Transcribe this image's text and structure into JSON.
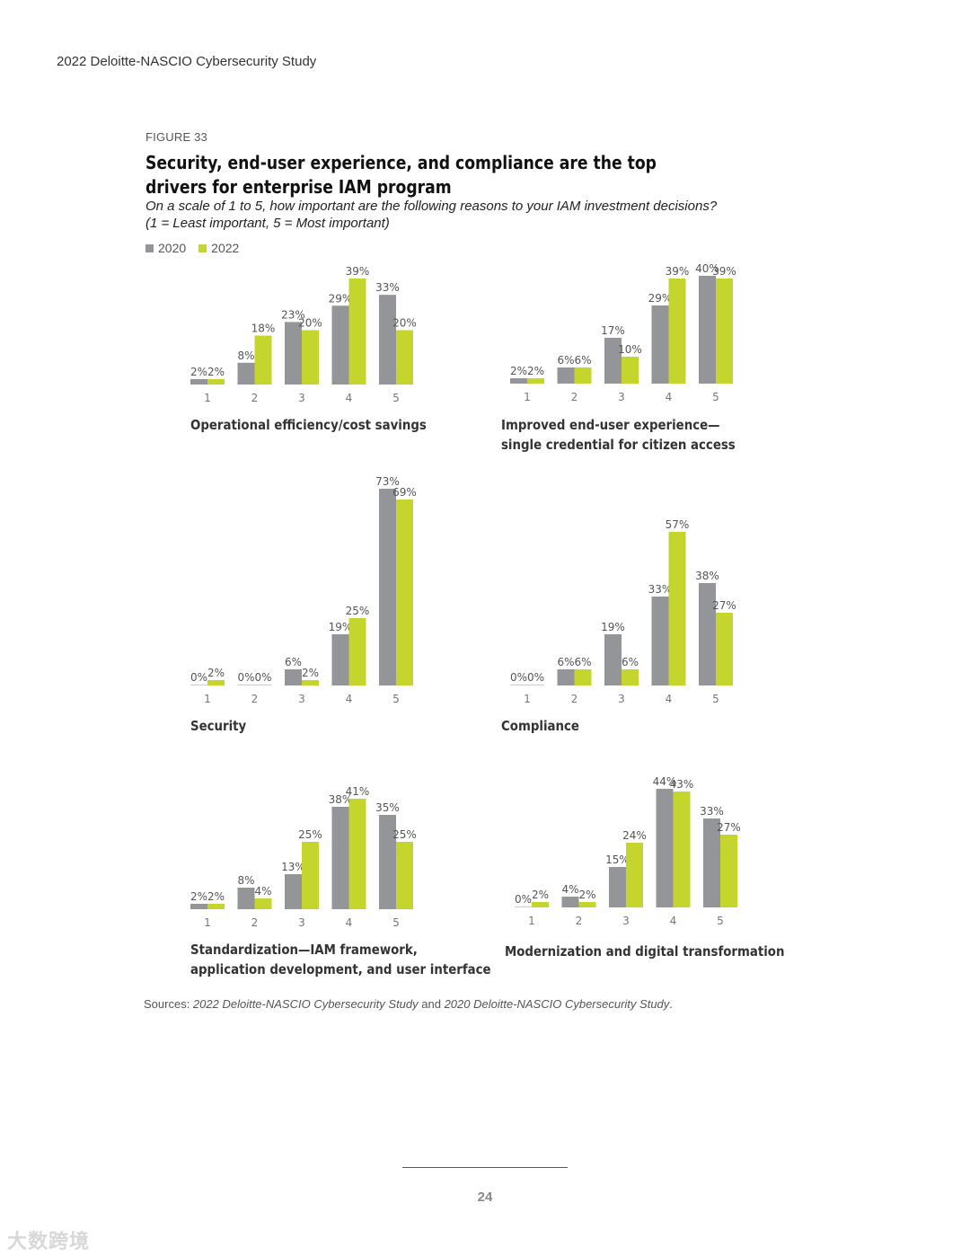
{
  "header": {
    "running_title": "2022 Deloitte-NASCIO Cybersecurity Study"
  },
  "figure": {
    "label": "FIGURE 33",
    "title": "Security, end-user experience, and compliance are the top drivers for enterprise IAM program",
    "subtitle_line1": "On a scale of 1 to 5, how important are the following reasons to your IAM investment decisions?",
    "subtitle_line2": "(1 = Least important, 5 = Most important)"
  },
  "legend": [
    {
      "label": "2020",
      "color": "#939598"
    },
    {
      "label": "2022",
      "color": "#c4d52e"
    }
  ],
  "chart_data": [
    {
      "type": "bar",
      "title_lines": [
        "Operational efficiency/cost savings"
      ],
      "categories": [
        "1",
        "2",
        "3",
        "4",
        "5"
      ],
      "series": [
        {
          "name": "2020",
          "values": [
            2,
            8,
            23,
            29,
            33
          ],
          "labels": [
            "2%",
            "8%",
            "23%",
            "29%",
            "33%"
          ]
        },
        {
          "name": "2022",
          "values": [
            2,
            18,
            20,
            39,
            20
          ],
          "labels": [
            "2%",
            "18%",
            "20%",
            "39%",
            "20%"
          ]
        }
      ],
      "ylim": [
        0,
        39
      ]
    },
    {
      "type": "bar",
      "title_lines": [
        "Improved end-user experience—",
        "single credential for citizen access"
      ],
      "categories": [
        "1",
        "2",
        "3",
        "4",
        "5"
      ],
      "series": [
        {
          "name": "2020",
          "values": [
            2,
            6,
            17,
            29,
            40
          ],
          "labels": [
            "2%",
            "6%",
            "17%",
            "29%",
            "40%"
          ]
        },
        {
          "name": "2022",
          "values": [
            2,
            6,
            10,
            39,
            39
          ],
          "labels": [
            "2%",
            "6%",
            "10%",
            "39%",
            "39%"
          ]
        }
      ],
      "ylim": [
        0,
        40
      ]
    },
    {
      "type": "bar",
      "title_lines": [
        "Security"
      ],
      "categories": [
        "1",
        "2",
        "3",
        "4",
        "5"
      ],
      "series": [
        {
          "name": "2020",
          "values": [
            0,
            0,
            6,
            19,
            73
          ],
          "labels": [
            "0%",
            "0%",
            "6%",
            "19%",
            "73%"
          ]
        },
        {
          "name": "2022",
          "values": [
            2,
            0,
            2,
            25,
            69
          ],
          "labels": [
            "2%",
            "0%",
            "2%",
            "25%",
            "69%"
          ]
        }
      ],
      "ylim": [
        0,
        73
      ]
    },
    {
      "type": "bar",
      "title_lines": [
        "Compliance"
      ],
      "categories": [
        "1",
        "2",
        "3",
        "4",
        "5"
      ],
      "series": [
        {
          "name": "2020",
          "values": [
            0,
            6,
            19,
            33,
            38
          ],
          "labels": [
            "0%",
            "6%",
            "19%",
            "33%",
            "38%"
          ]
        },
        {
          "name": "2022",
          "values": [
            0,
            6,
            6,
            57,
            27
          ],
          "labels": [
            "0%",
            "6%",
            "6%",
            "57%",
            "27%"
          ]
        }
      ],
      "ylim": [
        0,
        57
      ]
    },
    {
      "type": "bar",
      "title_lines": [
        "Standardization—IAM framework,",
        "application development, and user interface"
      ],
      "categories": [
        "1",
        "2",
        "3",
        "4",
        "5"
      ],
      "series": [
        {
          "name": "2020",
          "values": [
            2,
            8,
            13,
            38,
            35
          ],
          "labels": [
            "2%",
            "8%",
            "13%",
            "38%",
            "35%"
          ]
        },
        {
          "name": "2022",
          "values": [
            2,
            4,
            25,
            41,
            25
          ],
          "labels": [
            "2%",
            "4%",
            "25%",
            "41%",
            "25%"
          ]
        }
      ],
      "ylim": [
        0,
        41
      ]
    },
    {
      "type": "bar",
      "title_lines": [
        "Modernization and digital transformation"
      ],
      "categories": [
        "1",
        "2",
        "3",
        "4",
        "5"
      ],
      "series": [
        {
          "name": "2020",
          "values": [
            0,
            4,
            15,
            44,
            33
          ],
          "labels": [
            "0%",
            "4%",
            "15%",
            "44%",
            "33%"
          ]
        },
        {
          "name": "2022",
          "values": [
            2,
            2,
            24,
            43,
            27
          ],
          "labels": [
            "2%",
            "2%",
            "24%",
            "43%",
            "27%"
          ]
        }
      ],
      "ylim": [
        0,
        44
      ]
    }
  ],
  "sources": {
    "prefix": "Sources: ",
    "title_2022": "2022 Deloitte-NASCIO Cybersecurity Study",
    "conjunction": " and ",
    "title_2020": "2020 Deloitte-NASCIO Cybersecurity Study",
    "suffix": "."
  },
  "footer": {
    "page_number": "24"
  },
  "watermark": "大数跨境"
}
